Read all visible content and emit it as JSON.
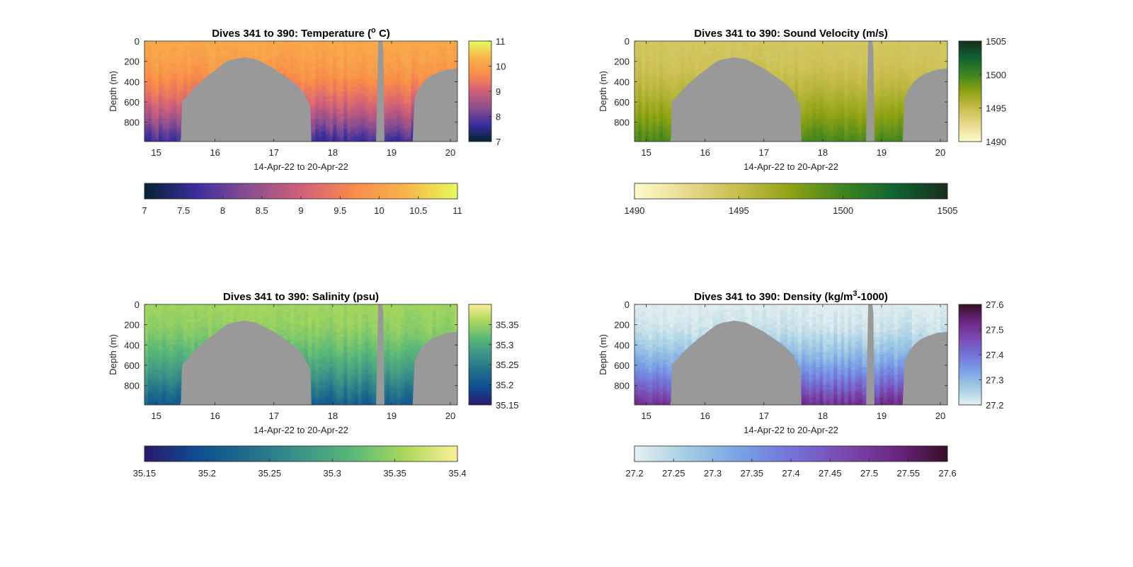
{
  "chart_data": [
    {
      "type": "heatmap",
      "title": "Dives 341 to 390: Temperature (",
      "title_sup": "o",
      "title_suffix": " C)",
      "ylabel": "Depth (m)",
      "xlabel": "14-Apr-22 to 20-Apr-22",
      "x_ticks": [
        "15",
        "16",
        "17",
        "18",
        "19",
        "20"
      ],
      "x_tick_values": [
        15,
        16,
        17,
        18,
        19,
        20
      ],
      "xlim": [
        14.8,
        20.12
      ],
      "y_ticks": [
        "0",
        "200",
        "400",
        "600",
        "800"
      ],
      "y_tick_values": [
        0,
        200,
        400,
        600,
        800
      ],
      "ylim": [
        0,
        990
      ],
      "colormap": "thermal",
      "colormap_stops": [
        "#032333",
        "#3b2d9e",
        "#8a4e8f",
        "#d0607a",
        "#f98a4a",
        "#f7b54a",
        "#e8fa5b"
      ],
      "clim": [
        7,
        11
      ],
      "cbar_ticks": [
        "7",
        "8",
        "9",
        "10",
        "11"
      ],
      "cbar_tick_values": [
        7,
        8,
        9,
        10,
        11
      ],
      "hcbar_ticks": [
        "7",
        "7.5",
        "8",
        "8.5",
        "9",
        "9.5",
        "10",
        "10.5",
        "11"
      ],
      "hcbar_tick_values": [
        7,
        7.5,
        8,
        8.5,
        9,
        9.5,
        10,
        10.5,
        11
      ],
      "surface_value": 10.15,
      "deep_value": 7.6,
      "mask_color": "#999999"
    },
    {
      "type": "heatmap",
      "title": "Dives 341 to 390: Sound Velocity (m/s)",
      "ylabel": "Depth (m)",
      "xlabel": "14-Apr-22 to 20-Apr-22",
      "x_ticks": [
        "15",
        "16",
        "17",
        "18",
        "19",
        "20"
      ],
      "x_tick_values": [
        15,
        16,
        17,
        18,
        19,
        20
      ],
      "xlim": [
        14.8,
        20.12
      ],
      "y_ticks": [
        "0",
        "200",
        "400",
        "600",
        "800"
      ],
      "y_tick_values": [
        0,
        200,
        400,
        600,
        800
      ],
      "ylim": [
        0,
        990
      ],
      "colormap": "speed",
      "colormap_stops": [
        "#fefccd",
        "#e8d98f",
        "#c8bd4c",
        "#8ea212",
        "#3d8420",
        "#0f6331",
        "#1a2e1c"
      ],
      "clim": [
        1490,
        1505
      ],
      "cbar_ticks": [
        "1490",
        "1495",
        "1500",
        "1505"
      ],
      "cbar_tick_values": [
        1490,
        1495,
        1500,
        1505
      ],
      "hcbar_ticks": [
        "1490",
        "1495",
        "1500",
        "1505"
      ],
      "hcbar_tick_values": [
        1490,
        1495,
        1500,
        1505
      ],
      "surface_value": 1494.2,
      "deep_value": 1499.8,
      "mask_color": "#999999"
    },
    {
      "type": "heatmap",
      "title": "Dives 341 to 390: Salinity (psu)",
      "ylabel": "Depth (m)",
      "xlabel": "14-Apr-22 to 20-Apr-22",
      "x_ticks": [
        "15",
        "16",
        "17",
        "18",
        "19",
        "20"
      ],
      "x_tick_values": [
        15,
        16,
        17,
        18,
        19,
        20
      ],
      "xlim": [
        14.8,
        20.12
      ],
      "y_ticks": [
        "0",
        "200",
        "400",
        "600",
        "800"
      ],
      "y_tick_values": [
        0,
        200,
        400,
        600,
        800
      ],
      "ylim": [
        0,
        990
      ],
      "colormap": "haline",
      "colormap_stops": [
        "#2a186c",
        "#0e4c92",
        "#206e8b",
        "#3c9387",
        "#5ab978",
        "#aad85c",
        "#fdee99"
      ],
      "clim": [
        35.15,
        35.4
      ],
      "cbar_ticks": [
        "35.15",
        "35.2",
        "35.25",
        "35.3",
        "35.35"
      ],
      "cbar_tick_values": [
        35.15,
        35.2,
        35.25,
        35.3,
        35.35
      ],
      "hcbar_ticks": [
        "35.15",
        "35.2",
        "35.25",
        "35.3",
        "35.35",
        "35.4"
      ],
      "hcbar_tick_values": [
        35.15,
        35.2,
        35.25,
        35.3,
        35.35,
        35.4
      ],
      "surface_value": 35.355,
      "deep_value": 35.21,
      "mask_color": "#999999"
    },
    {
      "type": "heatmap",
      "title": "Dives 341 to 390: Density (kg/m",
      "title_sup": "3",
      "title_suffix": "-1000)",
      "ylabel": "Depth (m)",
      "xlabel": "14-Apr-22 to 20-Apr-22",
      "x_ticks": [
        "15",
        "16",
        "17",
        "18",
        "19",
        "20"
      ],
      "x_tick_values": [
        15,
        16,
        17,
        18,
        19,
        20
      ],
      "xlim": [
        14.8,
        20.12
      ],
      "y_ticks": [
        "0",
        "200",
        "400",
        "600",
        "800"
      ],
      "y_tick_values": [
        0,
        200,
        400,
        600,
        800
      ],
      "ylim": [
        0,
        990
      ],
      "colormap": "dense",
      "colormap_stops": [
        "#e6f1f1",
        "#a4cde3",
        "#7aa2e6",
        "#7473d8",
        "#7a4ab0",
        "#6c2682",
        "#360e24"
      ],
      "clim": [
        27.2,
        27.6
      ],
      "cbar_ticks": [
        "27.2",
        "27.3",
        "27.4",
        "27.5",
        "27.6"
      ],
      "cbar_tick_values": [
        27.2,
        27.3,
        27.4,
        27.5,
        27.6
      ],
      "hcbar_ticks": [
        "27.2",
        "27.25",
        "27.3",
        "27.35",
        "27.4",
        "27.45",
        "27.5",
        "27.55",
        "27.6"
      ],
      "hcbar_tick_values": [
        27.2,
        27.25,
        27.3,
        27.35,
        27.4,
        27.45,
        27.5,
        27.55,
        27.6
      ],
      "surface_value": 27.205,
      "deep_value": 27.52,
      "mask_color": "#999999"
    }
  ],
  "bathymetry_profile": {
    "x": [
      14.8,
      15.42,
      15.43,
      15.5,
      15.6,
      15.7,
      15.8,
      15.9,
      16.0,
      16.1,
      16.2,
      16.3,
      16.4,
      16.5,
      16.6,
      16.7,
      16.8,
      16.9,
      17.0,
      17.1,
      17.2,
      17.3,
      17.4,
      17.5,
      17.55,
      17.62,
      17.63,
      18.75,
      18.76,
      18.86,
      18.87,
      19.37,
      19.38,
      19.45,
      19.55,
      19.65,
      19.75,
      19.85,
      19.95,
      20.12
    ],
    "top_depth_m": [
      990,
      990,
      600,
      560,
      490,
      430,
      380,
      330,
      290,
      240,
      200,
      180,
      170,
      160,
      170,
      180,
      210,
      240,
      270,
      310,
      350,
      390,
      440,
      500,
      560,
      640,
      990,
      990,
      0,
      0,
      990,
      990,
      580,
      480,
      400,
      350,
      320,
      300,
      280,
      270
    ]
  }
}
